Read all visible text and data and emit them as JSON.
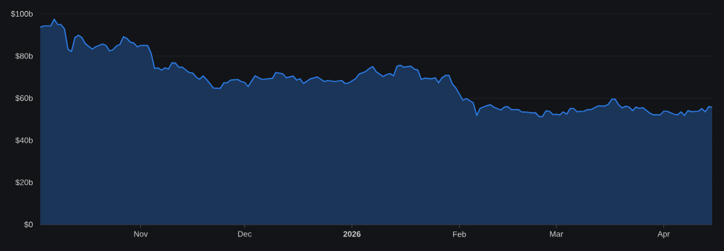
{
  "chart_data": {
    "type": "area",
    "color": "#2b7be4",
    "x": [
      "2025-10-03",
      "2025-10-04",
      "2025-10-06",
      "2025-10-07",
      "2025-10-08",
      "2025-10-09",
      "2025-10-10",
      "2025-10-11",
      "2025-10-12",
      "2025-10-13",
      "2025-10-14",
      "2025-10-15",
      "2025-10-16",
      "2025-10-18",
      "2025-10-19",
      "2025-10-21",
      "2025-10-22",
      "2025-10-23",
      "2025-10-24",
      "2025-10-25",
      "2025-10-26",
      "2025-10-27",
      "2025-10-28",
      "2025-10-29",
      "2025-10-30",
      "2025-10-31",
      "2025-11-01",
      "2025-11-03",
      "2025-11-04",
      "2025-11-05",
      "2025-11-06",
      "2025-11-07",
      "2025-11-08",
      "2025-11-09",
      "2025-11-10",
      "2025-11-11",
      "2025-11-12",
      "2025-11-13",
      "2025-11-14",
      "2025-11-15",
      "2025-11-16",
      "2025-11-17",
      "2025-11-18",
      "2025-11-19",
      "2025-11-20",
      "2025-11-22",
      "2025-11-24",
      "2025-11-25",
      "2025-11-26",
      "2025-11-27",
      "2025-11-29",
      "2025-11-30",
      "2025-12-01",
      "2025-12-02",
      "2025-12-04",
      "2025-12-06",
      "2025-12-09",
      "2025-12-10",
      "2025-12-12",
      "2025-12-13",
      "2025-12-15",
      "2025-12-16",
      "2025-12-17",
      "2025-12-18",
      "2025-12-20",
      "2025-12-22",
      "2025-12-24",
      "2025-12-25",
      "2025-12-27",
      "2025-12-29",
      "2025-12-30",
      "2025-12-31",
      "2026-01-02",
      "2026-01-03",
      "2026-01-05",
      "2026-01-06",
      "2026-01-07",
      "2026-01-08",
      "2026-01-10",
      "2026-01-11",
      "2026-01-12",
      "2026-01-13",
      "2026-01-14",
      "2026-01-15",
      "2026-01-16",
      "2026-01-18",
      "2026-01-19",
      "2026-01-20",
      "2026-01-21",
      "2026-01-22",
      "2026-01-24",
      "2026-01-25",
      "2026-01-26",
      "2026-01-27",
      "2026-01-28",
      "2026-01-29",
      "2026-01-30",
      "2026-01-31",
      "2026-02-02",
      "2026-02-03",
      "2026-02-05",
      "2026-02-06",
      "2026-02-07",
      "2026-02-09",
      "2026-02-10",
      "2026-02-11",
      "2026-02-13",
      "2026-02-14",
      "2026-02-15",
      "2026-02-16",
      "2026-02-18",
      "2026-02-19",
      "2026-02-21",
      "2026-02-22",
      "2026-02-23",
      "2026-02-24",
      "2026-02-25",
      "2026-02-26",
      "2026-02-27",
      "2026-02-28",
      "2026-03-01",
      "2026-03-02",
      "2026-03-03",
      "2026-03-04",
      "2026-03-05",
      "2026-03-06",
      "2026-03-07",
      "2026-03-09",
      "2026-03-10",
      "2026-03-11",
      "2026-03-13",
      "2026-03-15",
      "2026-03-16",
      "2026-03-17",
      "2026-03-18",
      "2026-03-19",
      "2026-03-20",
      "2026-03-21",
      "2026-03-22",
      "2026-03-23",
      "2026-03-24",
      "2026-03-25",
      "2026-03-26",
      "2026-03-28",
      "2026-03-29",
      "2026-03-31",
      "2026-04-01",
      "2026-04-02",
      "2026-04-04",
      "2026-04-05",
      "2026-04-06",
      "2026-04-07",
      "2026-04-08",
      "2026-04-09",
      "2026-04-11",
      "2026-04-12",
      "2026-04-13",
      "2026-04-14",
      "2026-04-15"
    ],
    "values": [
      93.7,
      94.3,
      94.3,
      97.5,
      95,
      94.9,
      92.8,
      83.2,
      82.2,
      88.8,
      89.9,
      88.8,
      85.9,
      83.3,
      84.4,
      85.7,
      85,
      82.4,
      83,
      84.8,
      85.5,
      89.2,
      88.4,
      86.6,
      86.2,
      84.4,
      85,
      85,
      81.3,
      74.1,
      74.4,
      73.3,
      74.4,
      73.8,
      76.8,
      76.7,
      74.7,
      74.7,
      73.4,
      72.2,
      71.9,
      70,
      69,
      70.6,
      68.9,
      64.8,
      64.7,
      67.3,
      67.4,
      68.6,
      68.9,
      67.9,
      67.5,
      65.5,
      70.6,
      68.9,
      69.4,
      72.2,
      71.6,
      69.7,
      70.5,
      68.6,
      69.2,
      67,
      69.2,
      70.1,
      67.9,
      68.4,
      67.9,
      68.4,
      67,
      67.2,
      69.2,
      71.4,
      72.7,
      74.1,
      75,
      72.5,
      70.3,
      71.2,
      71.7,
      70.6,
      75.2,
      75.6,
      74.7,
      75.2,
      73.8,
      73.4,
      68.9,
      69.5,
      69.2,
      69.7,
      67.3,
      69.7,
      70.8,
      70.8,
      66.7,
      64.8,
      59.1,
      59.8,
      57.8,
      51.8,
      55.2,
      56.5,
      56.9,
      55.7,
      54.4,
      55.8,
      56,
      54.6,
      54.6,
      53.5,
      53.3,
      53,
      53.1,
      51.3,
      51.3,
      54,
      53.8,
      52.3,
      52.4,
      52.1,
      53.5,
      52.4,
      55.1,
      55.1,
      53.6,
      53.8,
      54.6,
      54.6,
      56.3,
      56.3,
      57.1,
      59.5,
      59.5,
      56.9,
      55.4,
      56.2,
      55.8,
      54.1,
      55.8,
      55.2,
      55.5,
      52.9,
      52.1,
      52.1,
      53.8,
      53.8,
      52.4,
      52.1,
      53.5,
      51.8,
      54.1,
      53.6,
      53.8,
      55.1,
      53.5,
      56,
      55.7
    ],
    "xlim": [
      "2025-10-03",
      "2026-04-15"
    ],
    "xticks": [
      {
        "value": "2025-11-01",
        "label": "Nov"
      },
      {
        "value": "2025-12-01",
        "label": "Dec"
      },
      {
        "value": "2026-01-01",
        "label": "2026"
      },
      {
        "value": "2026-02-01",
        "label": "Feb"
      },
      {
        "value": "2026-03-01",
        "label": "Mar"
      },
      {
        "value": "2026-04-01",
        "label": "Apr"
      }
    ],
    "ylim": [
      0,
      100
    ],
    "yticks": [
      {
        "value": 0,
        "label": "$0"
      },
      {
        "value": 20,
        "label": "$20b"
      },
      {
        "value": 40,
        "label": "$40b"
      },
      {
        "value": 60,
        "label": "$60b"
      },
      {
        "value": 80,
        "label": "$80b"
      },
      {
        "value": 100,
        "label": "$100b"
      }
    ],
    "grid": "y"
  }
}
